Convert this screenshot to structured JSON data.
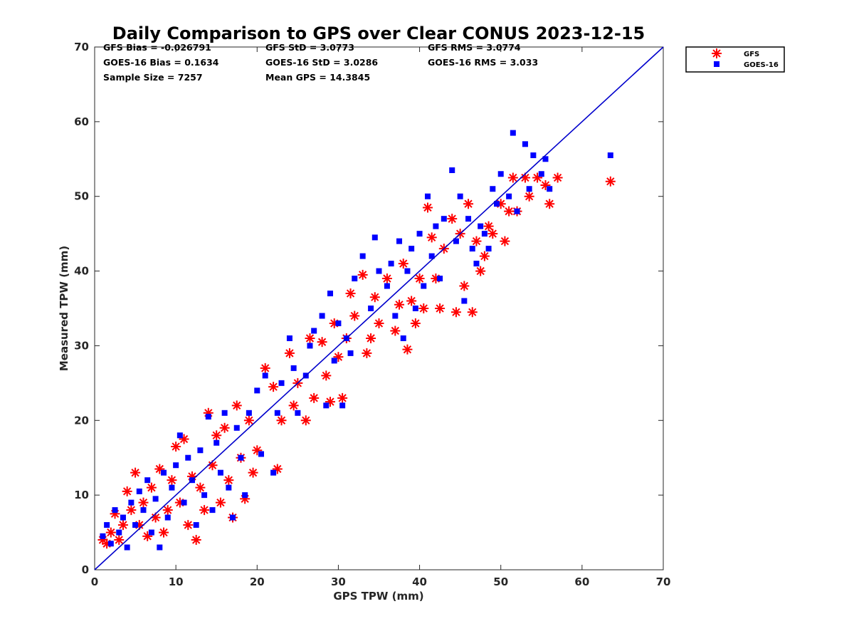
{
  "chart_data": {
    "type": "scatter",
    "title": "Daily Comparison to GPS over Clear CONUS 2023-12-15",
    "xlabel": "GPS TPW (mm)",
    "ylabel": "Measured TPW (mm)",
    "xlim": [
      0,
      70
    ],
    "ylim": [
      0,
      70
    ],
    "xticks": [
      "0",
      "10",
      "20",
      "30",
      "40",
      "50",
      "60",
      "70"
    ],
    "yticks": [
      "0",
      "10",
      "20",
      "30",
      "40",
      "50",
      "60",
      "70"
    ],
    "grid": false,
    "legend_position": "outside top-right",
    "stats": [
      "GFS Bias = -0.026791",
      "GFS StD = 3.0773",
      "GFS RMS = 3.0774",
      "GOES-16 Bias = 0.1634",
      "GOES-16 StD = 3.0286",
      "GOES-16 RMS = 3.033",
      "Sample Size = 7257",
      "Mean GPS = 14.3845"
    ],
    "reference_line": {
      "name": "1:1 line",
      "x": [
        0,
        70
      ],
      "y": [
        0,
        70
      ],
      "color": "#0000cc"
    },
    "series": [
      {
        "name": "GFS",
        "marker": "asterisk",
        "color": "#ff0000",
        "points": [
          [
            1,
            4
          ],
          [
            1.5,
            3.5
          ],
          [
            2,
            5
          ],
          [
            2.5,
            7.5
          ],
          [
            3,
            4
          ],
          [
            3.5,
            6
          ],
          [
            4,
            10.5
          ],
          [
            4.5,
            8
          ],
          [
            5,
            13
          ],
          [
            5.5,
            6
          ],
          [
            6,
            9
          ],
          [
            6.5,
            4.5
          ],
          [
            7,
            11
          ],
          [
            7.5,
            7
          ],
          [
            8,
            13.5
          ],
          [
            8.5,
            5
          ],
          [
            9,
            8
          ],
          [
            9.5,
            12
          ],
          [
            10,
            16.5
          ],
          [
            10.5,
            9
          ],
          [
            11,
            17.5
          ],
          [
            11.5,
            6
          ],
          [
            12,
            12.5
          ],
          [
            12.5,
            4
          ],
          [
            13,
            11
          ],
          [
            13.5,
            8
          ],
          [
            14,
            21
          ],
          [
            14.5,
            14
          ],
          [
            15,
            18
          ],
          [
            15.5,
            9
          ],
          [
            16,
            19
          ],
          [
            16.5,
            12
          ],
          [
            17,
            7
          ],
          [
            17.5,
            22
          ],
          [
            18,
            15
          ],
          [
            18.5,
            9.5
          ],
          [
            19,
            20
          ],
          [
            19.5,
            13
          ],
          [
            20,
            16
          ],
          [
            21,
            27
          ],
          [
            22,
            24.5
          ],
          [
            22.5,
            13.5
          ],
          [
            23,
            20
          ],
          [
            24,
            29
          ],
          [
            24.5,
            22
          ],
          [
            25,
            25
          ],
          [
            26,
            20
          ],
          [
            26.5,
            31
          ],
          [
            27,
            23
          ],
          [
            28,
            30.5
          ],
          [
            28.5,
            26
          ],
          [
            29,
            22.5
          ],
          [
            29.5,
            33
          ],
          [
            30,
            28.5
          ],
          [
            30.5,
            23
          ],
          [
            31,
            31
          ],
          [
            31.5,
            37
          ],
          [
            32,
            34
          ],
          [
            33,
            39.5
          ],
          [
            33.5,
            29
          ],
          [
            34,
            31
          ],
          [
            34.5,
            36.5
          ],
          [
            35,
            33
          ],
          [
            36,
            39
          ],
          [
            37,
            32
          ],
          [
            37.5,
            35.5
          ],
          [
            38,
            41
          ],
          [
            38.5,
            29.5
          ],
          [
            39,
            36
          ],
          [
            39.5,
            33
          ],
          [
            40,
            39
          ],
          [
            40.5,
            35
          ],
          [
            41,
            48.5
          ],
          [
            41.5,
            44.5
          ],
          [
            42,
            39
          ],
          [
            42.5,
            35
          ],
          [
            43,
            43
          ],
          [
            44,
            47
          ],
          [
            44.5,
            34.5
          ],
          [
            45,
            45
          ],
          [
            45.5,
            38
          ],
          [
            46,
            49
          ],
          [
            46.5,
            34.5
          ],
          [
            47,
            44
          ],
          [
            47.5,
            40
          ],
          [
            48,
            42
          ],
          [
            48.5,
            46
          ],
          [
            49,
            45
          ],
          [
            50,
            49
          ],
          [
            50.5,
            44
          ],
          [
            51,
            48
          ],
          [
            51.5,
            52.5
          ],
          [
            52,
            48
          ],
          [
            53,
            52.5
          ],
          [
            53.5,
            50
          ],
          [
            54.5,
            52.5
          ],
          [
            55.5,
            51.5
          ],
          [
            56,
            49
          ],
          [
            57,
            52.5
          ],
          [
            63.5,
            52
          ]
        ]
      },
      {
        "name": "GOES-16",
        "marker": "square",
        "color": "#0000ff",
        "points": [
          [
            1,
            4.5
          ],
          [
            1.5,
            6
          ],
          [
            2,
            3.5
          ],
          [
            2.5,
            8
          ],
          [
            3,
            5
          ],
          [
            3.5,
            7
          ],
          [
            4,
            3
          ],
          [
            4.5,
            9
          ],
          [
            5,
            6
          ],
          [
            5.5,
            10.5
          ],
          [
            6,
            8
          ],
          [
            6.5,
            12
          ],
          [
            7,
            5
          ],
          [
            7.5,
            9.5
          ],
          [
            8,
            3
          ],
          [
            8.5,
            13
          ],
          [
            9,
            7
          ],
          [
            9.5,
            11
          ],
          [
            10,
            14
          ],
          [
            10.5,
            18
          ],
          [
            11,
            9
          ],
          [
            11.5,
            15
          ],
          [
            12,
            12
          ],
          [
            12.5,
            6
          ],
          [
            13,
            16
          ],
          [
            13.5,
            10
          ],
          [
            14,
            20.5
          ],
          [
            14.5,
            8
          ],
          [
            15,
            17
          ],
          [
            15.5,
            13
          ],
          [
            16,
            21
          ],
          [
            16.5,
            11
          ],
          [
            17,
            7
          ],
          [
            17.5,
            19
          ],
          [
            18,
            15
          ],
          [
            18.5,
            10
          ],
          [
            19,
            21
          ],
          [
            20,
            24
          ],
          [
            20.5,
            15.5
          ],
          [
            21,
            26
          ],
          [
            22,
            13
          ],
          [
            22.5,
            21
          ],
          [
            23,
            25
          ],
          [
            24,
            31
          ],
          [
            24.5,
            27
          ],
          [
            25,
            21
          ],
          [
            26,
            26
          ],
          [
            26.5,
            30
          ],
          [
            27,
            32
          ],
          [
            28,
            34
          ],
          [
            28.5,
            22
          ],
          [
            29,
            37
          ],
          [
            29.5,
            28
          ],
          [
            30,
            33
          ],
          [
            30.5,
            22
          ],
          [
            31,
            31
          ],
          [
            31.5,
            29
          ],
          [
            32,
            39
          ],
          [
            33,
            42
          ],
          [
            34,
            35
          ],
          [
            34.5,
            44.5
          ],
          [
            35,
            40
          ],
          [
            36,
            38
          ],
          [
            36.5,
            41
          ],
          [
            37,
            34
          ],
          [
            37.5,
            44
          ],
          [
            38,
            31
          ],
          [
            38.5,
            40
          ],
          [
            39,
            43
          ],
          [
            39.5,
            35
          ],
          [
            40,
            45
          ],
          [
            40.5,
            38
          ],
          [
            41,
            50
          ],
          [
            41.5,
            42
          ],
          [
            42,
            46
          ],
          [
            42.5,
            39
          ],
          [
            43,
            47
          ],
          [
            44,
            53.5
          ],
          [
            44.5,
            44
          ],
          [
            45,
            50
          ],
          [
            45.5,
            36
          ],
          [
            46,
            47
          ],
          [
            46.5,
            43
          ],
          [
            47,
            41
          ],
          [
            47.5,
            46
          ],
          [
            48,
            45
          ],
          [
            48.5,
            43
          ],
          [
            49,
            51
          ],
          [
            49.5,
            49
          ],
          [
            50,
            53
          ],
          [
            51,
            50
          ],
          [
            51.5,
            58.5
          ],
          [
            52,
            48
          ],
          [
            53,
            57
          ],
          [
            53.5,
            51
          ],
          [
            54,
            55.5
          ],
          [
            55,
            53
          ],
          [
            55.5,
            55
          ],
          [
            56,
            51
          ],
          [
            63.5,
            55.5
          ]
        ]
      }
    ]
  },
  "colors": {
    "axis": "#262626",
    "background": "#ffffff"
  }
}
